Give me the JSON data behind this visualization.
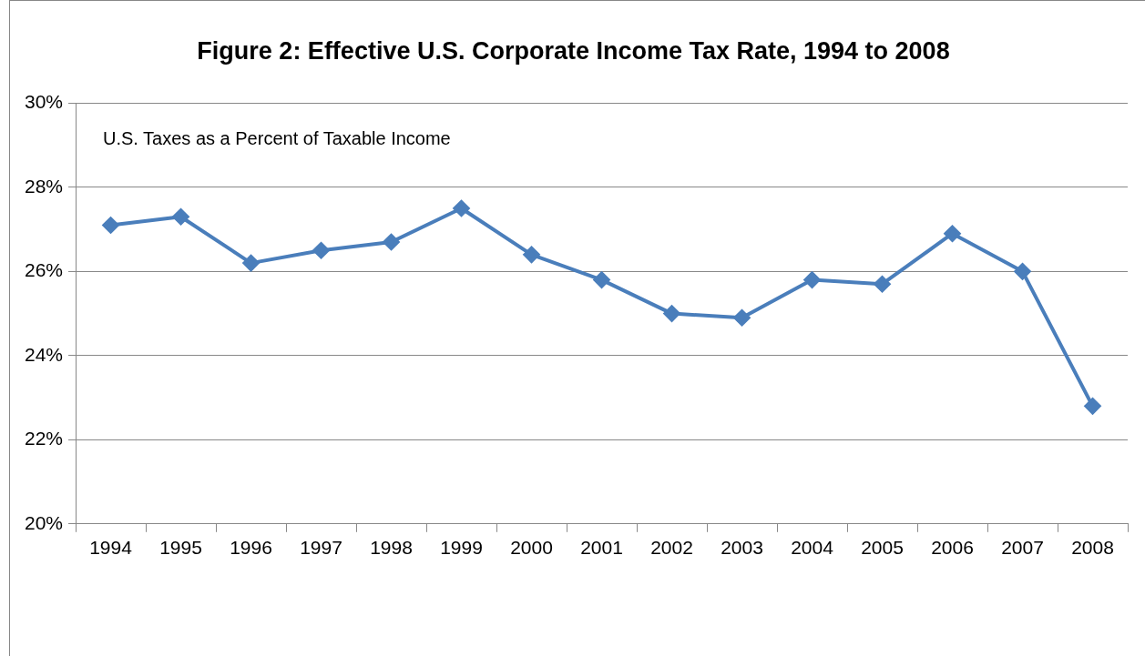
{
  "chart_data": {
    "type": "line",
    "title": "Figure 2: Effective U.S. Corporate Income Tax Rate, 1994 to 2008",
    "annotations": [
      "U.S. Taxes as a Percent of Taxable Income"
    ],
    "categories": [
      "1994",
      "1995",
      "1996",
      "1997",
      "1998",
      "1999",
      "2000",
      "2001",
      "2002",
      "2003",
      "2004",
      "2005",
      "2006",
      "2007",
      "2008"
    ],
    "series": [
      {
        "color": "#4a7ebb",
        "values": [
          27.1,
          27.3,
          26.2,
          26.5,
          26.7,
          27.5,
          26.4,
          25.8,
          25.0,
          24.9,
          25.8,
          25.7,
          26.9,
          26.0,
          22.8
        ]
      }
    ],
    "ylim": [
      20,
      30
    ],
    "yticks": [
      {
        "value": 20,
        "label": "20%"
      },
      {
        "value": 22,
        "label": "22%"
      },
      {
        "value": 24,
        "label": "24%"
      },
      {
        "value": 26,
        "label": "26%"
      },
      {
        "value": 28,
        "label": "28%"
      },
      {
        "value": 30,
        "label": "30%"
      }
    ],
    "grid": "y",
    "legend": false,
    "marker": "diamond",
    "line_style": "solid"
  }
}
